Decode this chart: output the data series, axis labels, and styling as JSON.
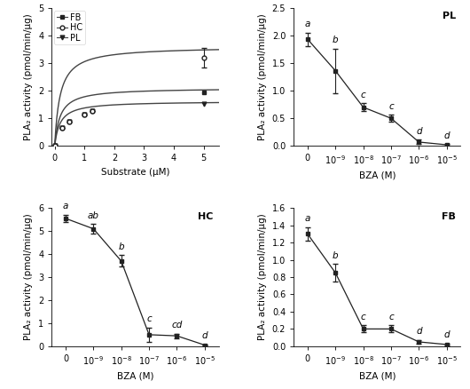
{
  "top_left": {
    "FB_x": [
      0,
      0.25,
      0.5,
      1.0,
      1.25,
      5.0
    ],
    "FB_y": [
      0,
      0.65,
      0.88,
      1.15,
      1.26,
      1.95
    ],
    "FB_vmax": 2.1,
    "FB_km": 0.18,
    "HC_x": [
      0,
      0.25,
      0.5,
      1.0,
      1.25,
      5.0
    ],
    "HC_y": [
      0,
      0.65,
      0.88,
      1.15,
      1.26,
      3.2
    ],
    "HC_err": [
      0,
      0,
      0,
      0,
      0,
      0.35
    ],
    "HC_vmax": 3.6,
    "HC_km": 0.18,
    "PL_x": [
      0,
      0.25,
      0.5,
      1.0,
      1.25,
      5.0
    ],
    "PL_y": [
      0,
      0.65,
      0.88,
      1.15,
      1.26,
      1.52
    ],
    "PL_vmax": 1.62,
    "PL_km": 0.18,
    "ylabel": "PLA₂ activity (pmol/min/μg)",
    "xlabel": "Substrate (μM)",
    "ylim": [
      0,
      5
    ],
    "xlim": [
      -0.1,
      5.5
    ],
    "yticks": [
      0,
      1,
      2,
      3,
      4,
      5
    ],
    "xticks": [
      0,
      1,
      2,
      3,
      4,
      5
    ]
  },
  "top_right": {
    "label": "PL",
    "x_labels": [
      "0",
      "10$^{-9}$",
      "10$^{-8}$",
      "10$^{-7}$",
      "10$^{-6}$",
      "10$^{-5}$"
    ],
    "y": [
      1.93,
      1.36,
      0.7,
      0.5,
      0.07,
      0.02
    ],
    "yerr": [
      0.12,
      0.4,
      0.07,
      0.06,
      0.04,
      0.01
    ],
    "letters": [
      "a",
      "b",
      "c",
      "c",
      "d",
      "d"
    ],
    "ylabel": "PLA₂ activity (pmol/min/μg)",
    "xlabel": "BZA (M)",
    "ylim": [
      0,
      2.5
    ],
    "yticks": [
      0.0,
      0.5,
      1.0,
      1.5,
      2.0,
      2.5
    ]
  },
  "bottom_left": {
    "label": "HC",
    "x_labels": [
      "0",
      "10$^{-9}$",
      "10$^{-8}$",
      "10$^{-7}$",
      "10$^{-6}$",
      "10$^{-5}$"
    ],
    "y": [
      5.55,
      5.1,
      3.7,
      0.5,
      0.45,
      0.05
    ],
    "yerr": [
      0.15,
      0.2,
      0.25,
      0.3,
      0.1,
      0.02
    ],
    "letters": [
      "a",
      "ab",
      "b",
      "c",
      "cd",
      "d"
    ],
    "ylabel": "PLA₂ activity (pmol/min/μg)",
    "xlabel": "BZA (M)",
    "ylim": [
      0,
      6
    ],
    "yticks": [
      0,
      1,
      2,
      3,
      4,
      5,
      6
    ]
  },
  "bottom_right": {
    "label": "FB",
    "x_labels": [
      "0",
      "10$^{-9}$",
      "10$^{-8}$",
      "10$^{-7}$",
      "10$^{-6}$",
      "10$^{-5}$"
    ],
    "y": [
      1.3,
      0.85,
      0.2,
      0.2,
      0.05,
      0.02
    ],
    "yerr": [
      0.08,
      0.1,
      0.04,
      0.04,
      0.02,
      0.01
    ],
    "letters": [
      "a",
      "b",
      "c",
      "c",
      "d",
      "d"
    ],
    "ylabel": "PLA₂ activity (pmol/min/μg)",
    "xlabel": "BZA (M)",
    "ylim": [
      0,
      1.6
    ],
    "yticks": [
      0.0,
      0.2,
      0.4,
      0.6,
      0.8,
      1.0,
      1.2,
      1.4,
      1.6
    ]
  },
  "line_color": "#444444",
  "marker_color": "#222222",
  "font_size_label": 7.5,
  "font_size_tick": 7,
  "font_size_letter": 7.5
}
